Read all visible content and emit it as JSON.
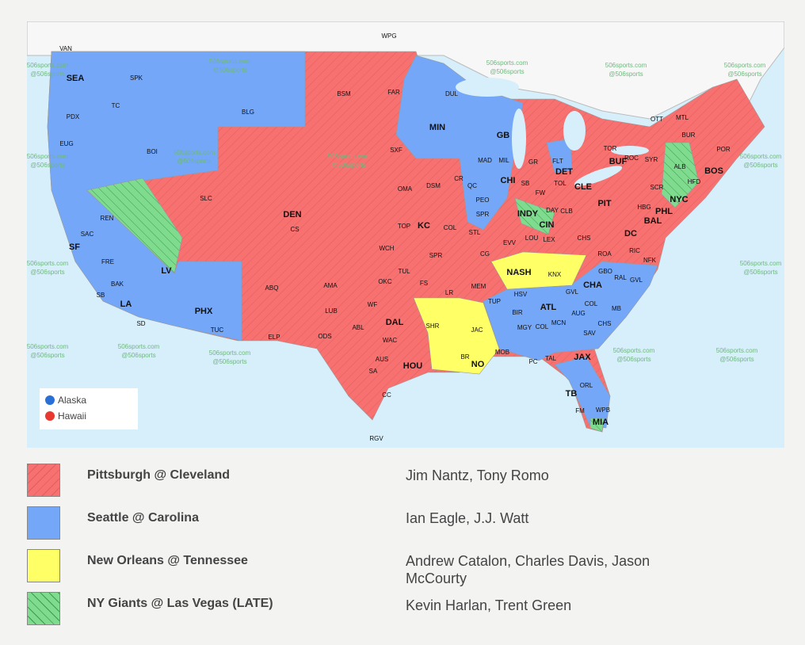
{
  "colors": {
    "pit_cle": "#f87171",
    "sea_car": "#74a7f7",
    "no_ten": "#ffff66",
    "nyg_lv": "#7fdc8f",
    "ocean": "#d6effa",
    "land_other": "#f7f7f7"
  },
  "watermark": [
    "506sports.com",
    "@506sports"
  ],
  "inset_legend": [
    {
      "label": "Alaska",
      "color": "#2a6fd6",
      "icon": "circle-icon"
    },
    {
      "label": "Hawaii",
      "color": "#e8392f",
      "icon": "circle-icon"
    }
  ],
  "games": [
    {
      "matchup": "Pittsburgh @ Cleveland",
      "announcers": "Jim Nantz, Tony Romo",
      "color": "#f87171",
      "pattern": "hatched"
    },
    {
      "matchup": "Seattle @ Carolina",
      "announcers": "Ian Eagle, J.J. Watt",
      "color": "#74a7f7",
      "pattern": "solid"
    },
    {
      "matchup": "New Orleans @ Tennessee",
      "announcers": "Andrew Catalon, Charles Davis, Jason McCourty",
      "color": "#ffff66",
      "pattern": "solid"
    },
    {
      "matchup": "NY Giants @ Las Vegas (LATE)",
      "announcers": "Kevin Harlan, Trent Green",
      "color": "#7fdc8f",
      "pattern": "hatched"
    }
  ],
  "cities": [
    {
      "t": "WPG"
    },
    {
      "t": "VAN"
    },
    {
      "t": "SEA",
      "b": true
    },
    {
      "t": "SPK"
    },
    {
      "t": "TC"
    },
    {
      "t": "PDX"
    },
    {
      "t": "BLG"
    },
    {
      "t": "EUG"
    },
    {
      "t": "BOI"
    },
    {
      "t": "SLC"
    },
    {
      "t": "REN"
    },
    {
      "t": "SAC"
    },
    {
      "t": "SF",
      "b": true
    },
    {
      "t": "FRE"
    },
    {
      "t": "LV",
      "b": true
    },
    {
      "t": "BAK"
    },
    {
      "t": "LA",
      "b": true
    },
    {
      "t": "SB"
    },
    {
      "t": "SD"
    },
    {
      "t": "PHX",
      "b": true
    },
    {
      "t": "TUC"
    },
    {
      "t": "ELP"
    },
    {
      "t": "ABQ"
    },
    {
      "t": "DEN",
      "b": true
    },
    {
      "t": "CS"
    },
    {
      "t": "BSM"
    },
    {
      "t": "FAR"
    },
    {
      "t": "DUL"
    },
    {
      "t": "MIN",
      "b": true
    },
    {
      "t": "SXF"
    },
    {
      "t": "OMA"
    },
    {
      "t": "DSM"
    },
    {
      "t": "CR"
    },
    {
      "t": "MAD"
    },
    {
      "t": "MIL"
    },
    {
      "t": "GB",
      "b": true
    },
    {
      "t": "QC"
    },
    {
      "t": "PEO"
    },
    {
      "t": "CHI",
      "b": true
    },
    {
      "t": "SB"
    },
    {
      "t": "GR"
    },
    {
      "t": "FLT"
    },
    {
      "t": "DET",
      "b": true
    },
    {
      "t": "TOL"
    },
    {
      "t": "CLE",
      "b": true
    },
    {
      "t": "FW"
    },
    {
      "t": "DAY"
    },
    {
      "t": "CLB"
    },
    {
      "t": "INDY",
      "b": true
    },
    {
      "t": "CIN",
      "b": true
    },
    {
      "t": "KC",
      "b": true
    },
    {
      "t": "TOP"
    },
    {
      "t": "COL"
    },
    {
      "t": "SPR"
    },
    {
      "t": "STL"
    },
    {
      "t": "WCH"
    },
    {
      "t": "SPR"
    },
    {
      "t": "TUL"
    },
    {
      "t": "OKC"
    },
    {
      "t": "CG"
    },
    {
      "t": "EVV"
    },
    {
      "t": "LOU"
    },
    {
      "t": "LEX"
    },
    {
      "t": "CHS"
    },
    {
      "t": "PIT",
      "b": true
    },
    {
      "t": "HBG"
    },
    {
      "t": "BAL",
      "b": true
    },
    {
      "t": "DC",
      "b": true
    },
    {
      "t": "PHL",
      "b": true
    },
    {
      "t": "NYC",
      "b": true
    },
    {
      "t": "HFD"
    },
    {
      "t": "BOS",
      "b": true
    },
    {
      "t": "POR"
    },
    {
      "t": "BUR"
    },
    {
      "t": "ALB"
    },
    {
      "t": "SYR"
    },
    {
      "t": "ROC"
    },
    {
      "t": "BUF",
      "b": true
    },
    {
      "t": "TOR"
    },
    {
      "t": "OTT"
    },
    {
      "t": "MTL"
    },
    {
      "t": "SCR"
    },
    {
      "t": "ROA"
    },
    {
      "t": "RIC"
    },
    {
      "t": "NFK"
    },
    {
      "t": "GBO"
    },
    {
      "t": "RAL"
    },
    {
      "t": "GVL"
    },
    {
      "t": "CHA",
      "b": true
    },
    {
      "t": "NASH",
      "b": true
    },
    {
      "t": "KNX"
    },
    {
      "t": "MEM"
    },
    {
      "t": "TUP"
    },
    {
      "t": "HSV"
    },
    {
      "t": "BIR"
    },
    {
      "t": "ATL",
      "b": true
    },
    {
      "t": "GVL"
    },
    {
      "t": "COL"
    },
    {
      "t": "MB"
    },
    {
      "t": "AUG"
    },
    {
      "t": "CHS"
    },
    {
      "t": "SAV"
    },
    {
      "t": "MCN"
    },
    {
      "t": "MGY"
    },
    {
      "t": "COL"
    },
    {
      "t": "MOB"
    },
    {
      "t": "NO",
      "b": true
    },
    {
      "t": "BR"
    },
    {
      "t": "JAC"
    },
    {
      "t": "SHR"
    },
    {
      "t": "LR"
    },
    {
      "t": "FS"
    },
    {
      "t": "AMA"
    },
    {
      "t": "LUB"
    },
    {
      "t": "ABL"
    },
    {
      "t": "WF"
    },
    {
      "t": "DAL",
      "b": true
    },
    {
      "t": "WAC"
    },
    {
      "t": "ODS"
    },
    {
      "t": "AUS"
    },
    {
      "t": "SA"
    },
    {
      "t": "HOU",
      "b": true
    },
    {
      "t": "CC"
    },
    {
      "t": "RGV"
    },
    {
      "t": "PC"
    },
    {
      "t": "TAL"
    },
    {
      "t": "JAX",
      "b": true
    },
    {
      "t": "TB",
      "b": true
    },
    {
      "t": "ORL"
    },
    {
      "t": "FM"
    },
    {
      "t": "WPB"
    },
    {
      "t": "MIA",
      "b": true
    }
  ]
}
